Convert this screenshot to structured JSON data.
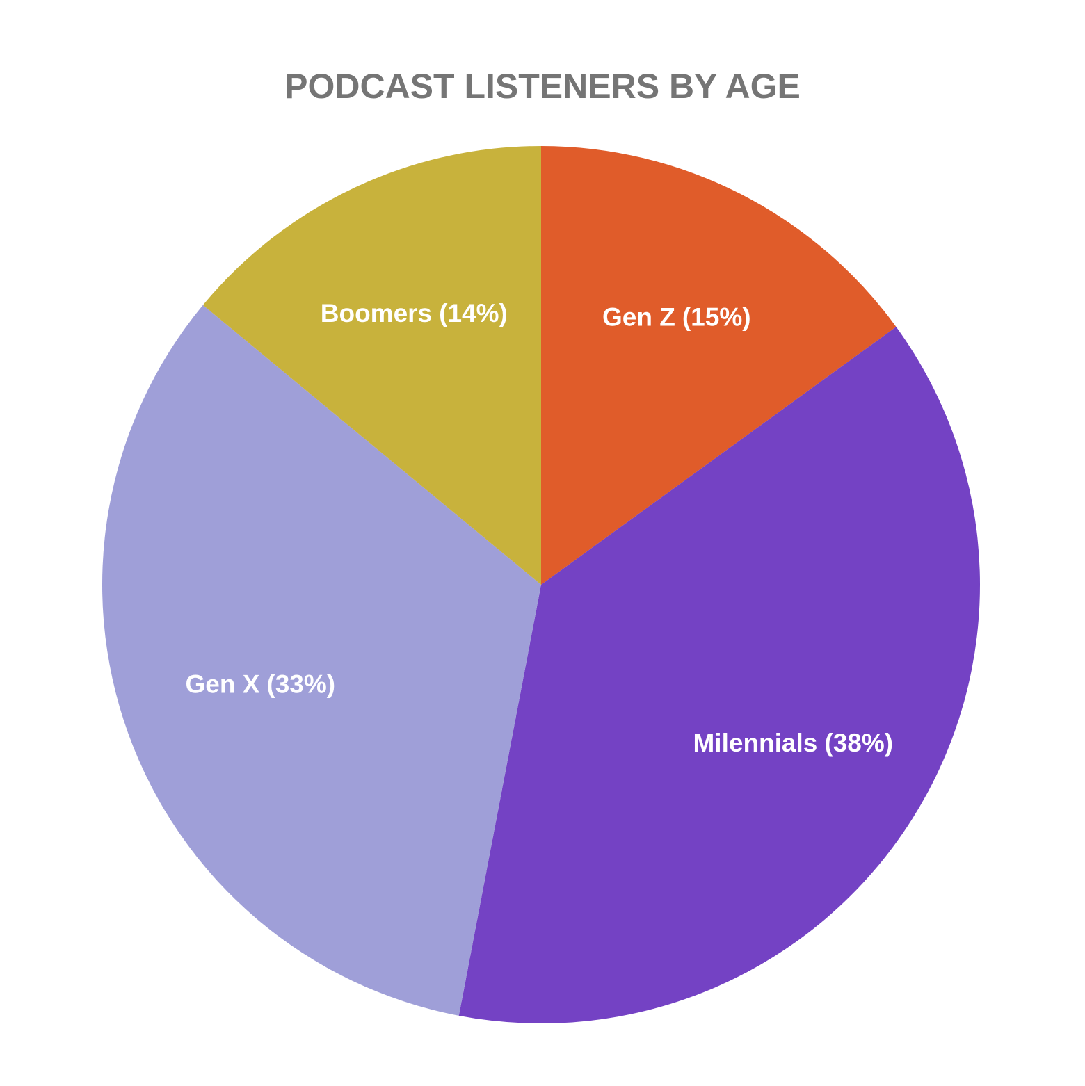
{
  "chart_data": {
    "type": "pie",
    "title": "PODCAST LISTENERS BY AGE",
    "categories": [
      "Gen Z",
      "Milennials",
      "Gen X",
      "Boomers"
    ],
    "values": [
      15,
      38,
      33,
      14
    ],
    "value_labels": [
      "(15%)",
      "(38%)",
      "(33%)",
      "(14%)"
    ],
    "colors": [
      "#e05c2a",
      "#7442c4",
      "#9f9fd8",
      "#c8b23c"
    ]
  }
}
